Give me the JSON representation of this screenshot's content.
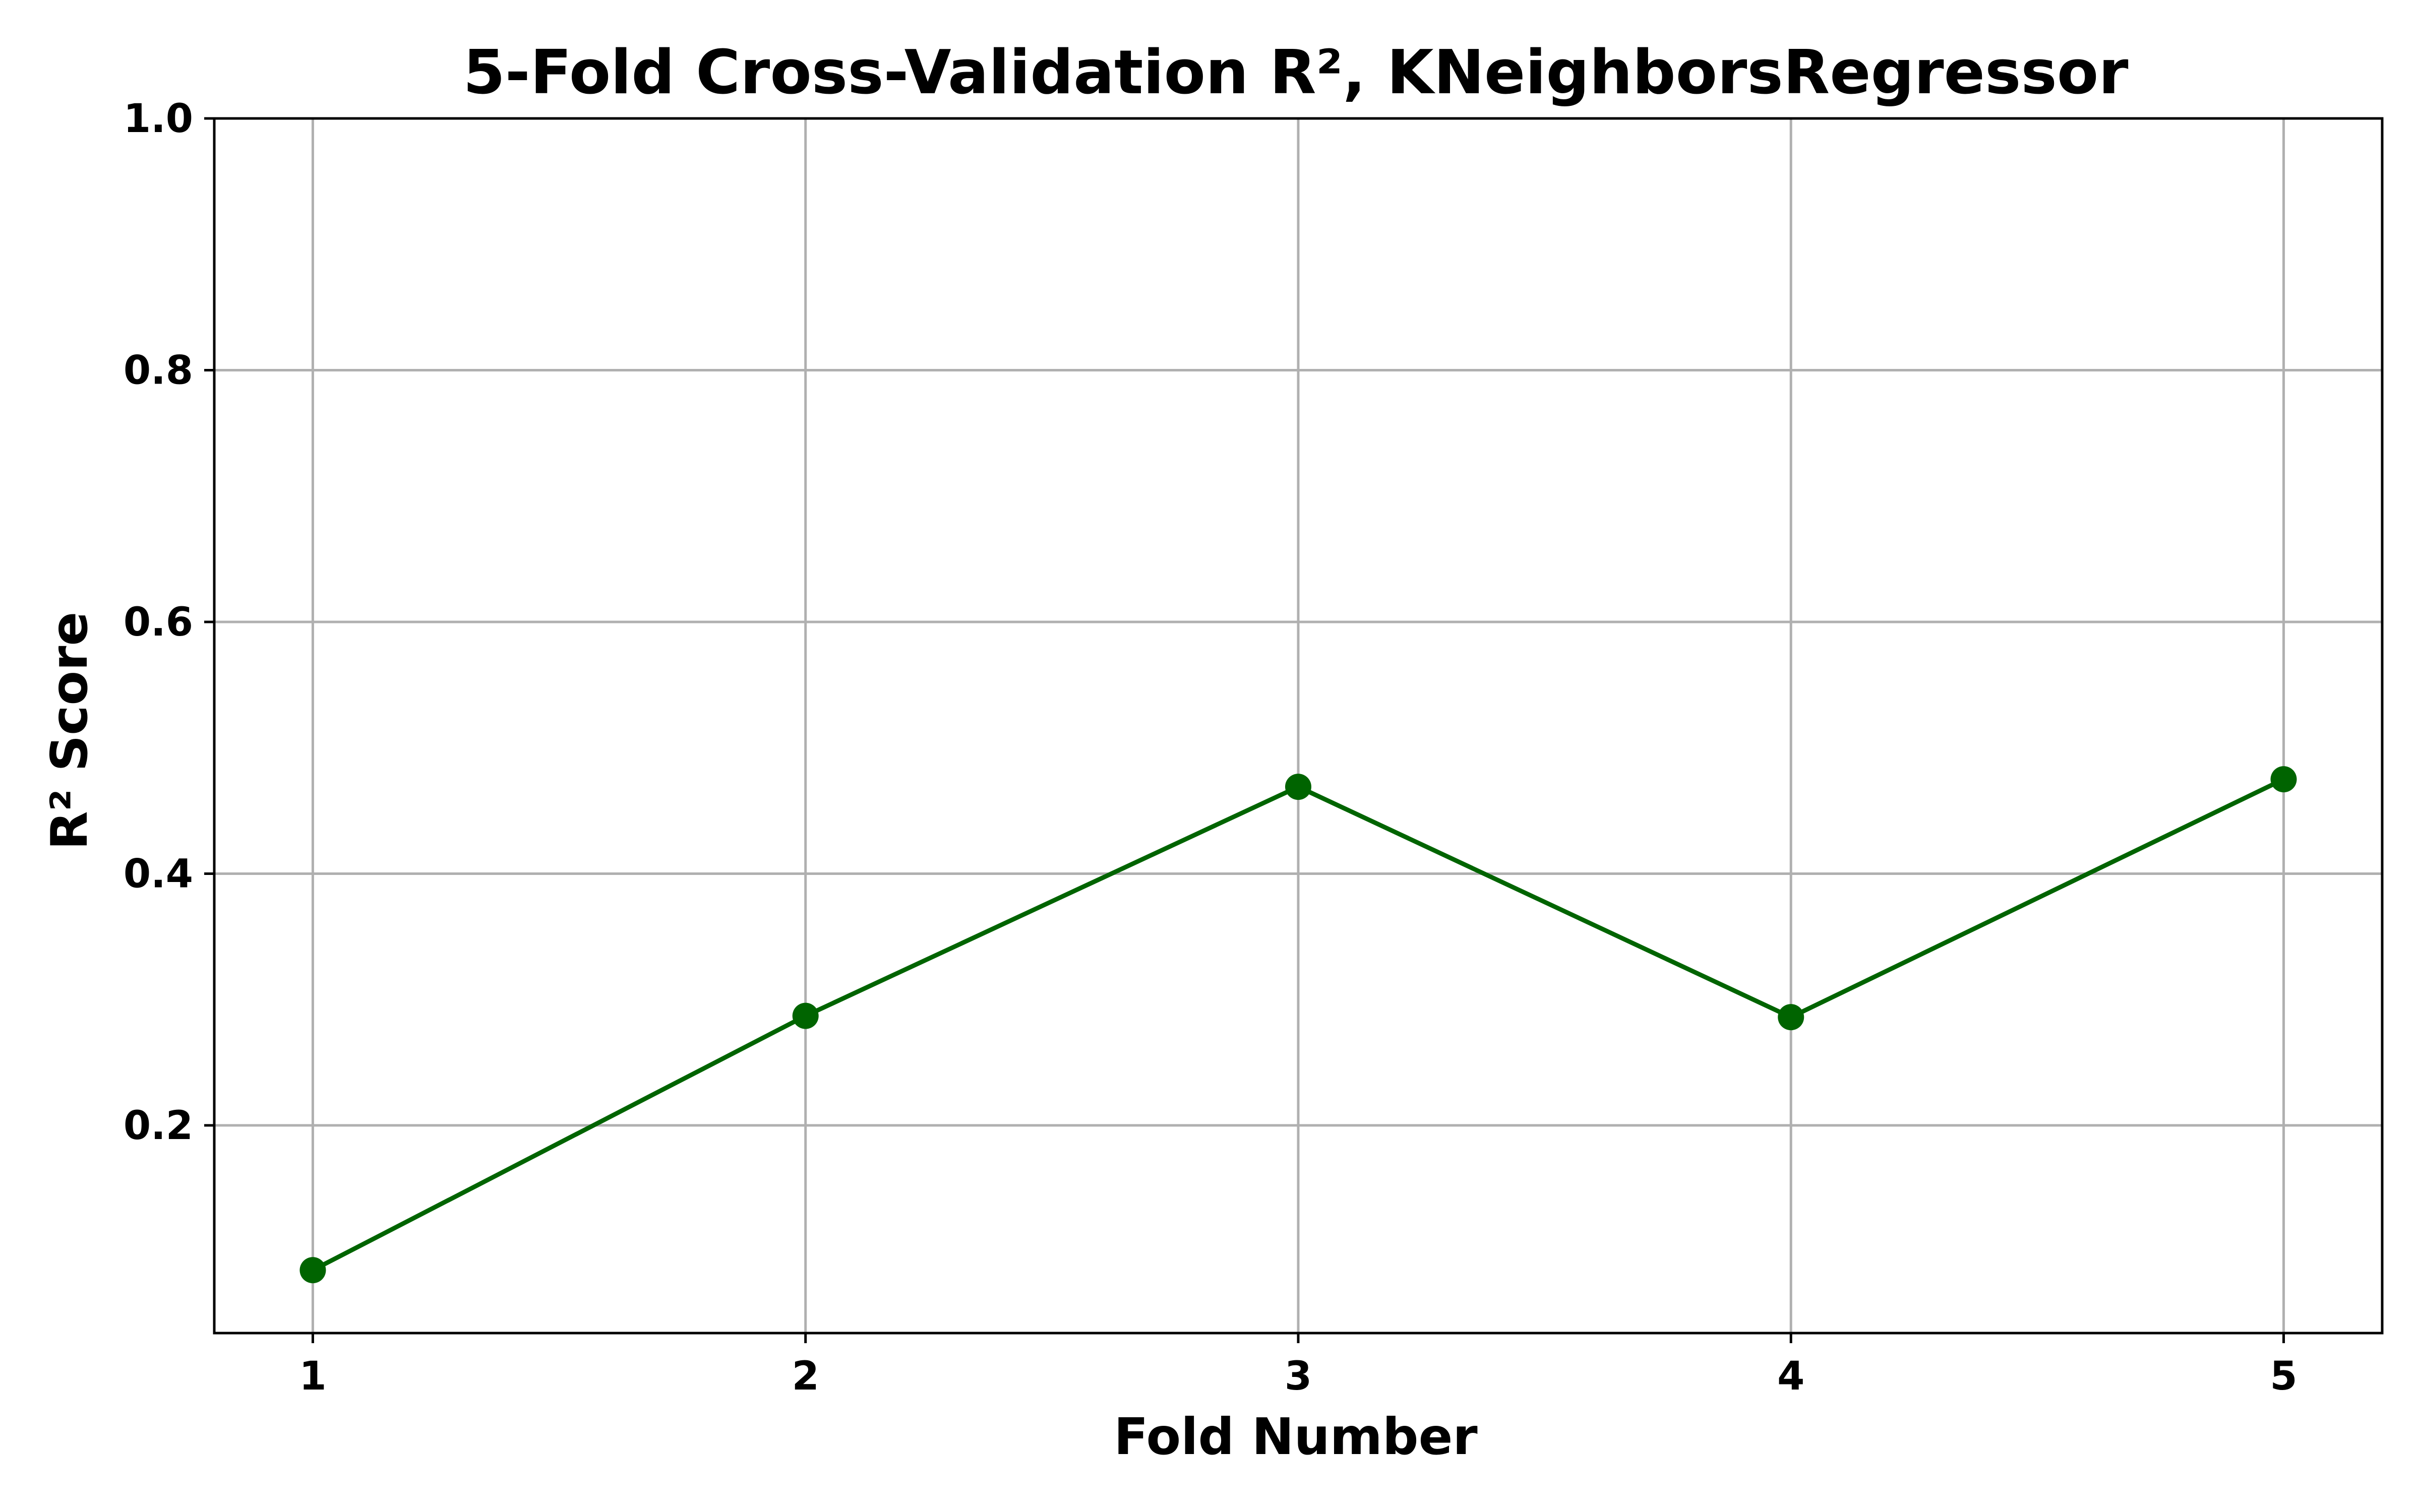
{
  "chart_data": {
    "type": "line",
    "title": "5-Fold Cross-Validation R², KNeighborsRegressor",
    "xlabel": "Fold Number",
    "ylabel": "R² Score",
    "x": [
      1,
      2,
      3,
      4,
      5
    ],
    "x_tick_labels": [
      "1",
      "2",
      "3",
      "4",
      "5"
    ],
    "xlim": [
      0.8,
      5.2
    ],
    "ylim": [
      0.035,
      1.0
    ],
    "y_ticks": [
      0.2,
      0.4,
      0.6,
      0.8,
      1.0
    ],
    "y_tick_labels": [
      "0.2",
      "0.4",
      "0.6",
      "0.8",
      "1.0"
    ],
    "grid": true,
    "series": [
      {
        "values": [
          0.085,
          0.287,
          0.469,
          0.286,
          0.475
        ],
        "color": "#006400",
        "marker": "circle"
      }
    ],
    "grid_color": "#b0b0b0",
    "axis_color": "#000000"
  }
}
